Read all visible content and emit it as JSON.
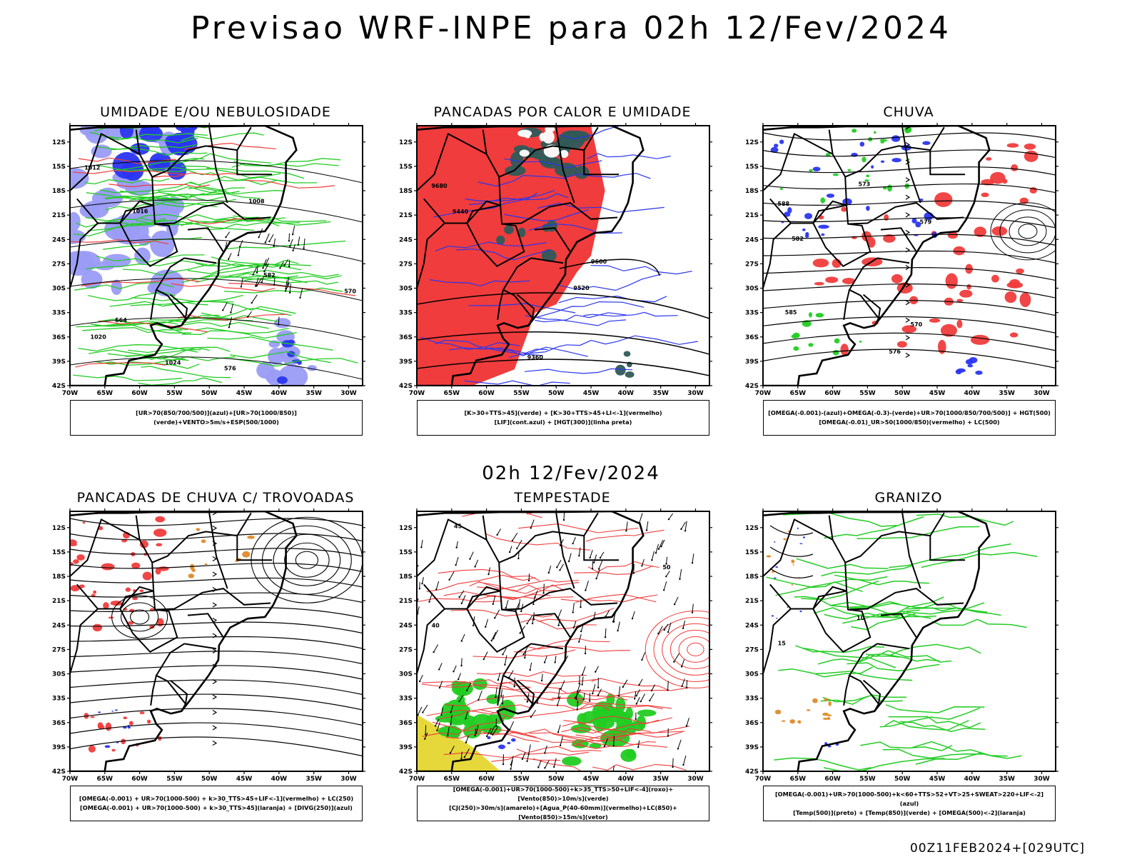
{
  "header": {
    "title": "Previsao WRF-INPE  para 02h 12/Fev/2024"
  },
  "middle_title": "02h 12/Fev/2024",
  "footer": "00Z11FEB2024+[029UTC]",
  "axes": {
    "lat_labels": [
      "12S",
      "15S",
      "18S",
      "21S",
      "24S",
      "27S",
      "30S",
      "33S",
      "36S",
      "39S",
      "42S"
    ],
    "lon_labels": [
      "70W",
      "65W",
      "60W",
      "55W",
      "50W",
      "45W",
      "40W",
      "35W",
      "30W"
    ]
  },
  "colors": {
    "red": "#f03c3c",
    "blue": "#2a35f0",
    "light_blue": "#9a9cf5",
    "green": "#22cc22",
    "dark_green": "#2f5a58",
    "orange": "#e08a28",
    "yellow": "#e6d83a",
    "black": "#000000"
  },
  "panels": [
    {
      "title": "UMIDADE E/OU NEBULOSIDADE",
      "caption": [
        "[UR>70(850/700/500)](azul)+[UR>70(1000/850)](verde)+VENTO>5m/s+ESP(500/1000)"
      ],
      "contour_labels": [
        "1012",
        "1016",
        "1020",
        "1008",
        "1024",
        "576",
        "570",
        "564",
        "582"
      ]
    },
    {
      "title": "PANCADAS POR CALOR E UMIDADE",
      "caption": [
        "[K>30+TTS>45](verde) + [K>30+TTS>45+LI<-1](vermelho)",
        "[LIF](cont.azul) + [HGT(300)](linha preta)"
      ],
      "contour_labels": [
        "9680",
        "9600",
        "9520",
        "9440",
        "9360"
      ]
    },
    {
      "title": "CHUVA",
      "caption": [
        "[OMEGA(-0.001)-(azul)+OMEGA(-0.3)-(verde)+UR>70(1000/850/700/500)] + HGT(500)",
        "[OMEGA(-0.01)_UR>50(1000/850)(vermelho) + LC(500)"
      ],
      "contour_labels": [
        "588",
        "585",
        "582",
        "579",
        "576",
        "573",
        "570"
      ]
    },
    {
      "title": "PANCADAS DE CHUVA C/ TROVOADAS",
      "caption": [
        "[OMEGA(-0.001) + UR>70(1000-500) + k>30_TTS>45+LIF<-1](vermelho) + LC(250)",
        "[OMEGA(-0.001) + UR>70(1000-500) + k>30_TTS>45](laranja) + [DIVG(250)](azul)"
      ],
      "contour_labels": []
    },
    {
      "title": "TEMPESTADE",
      "caption": [
        "[OMEGA(-0.001)+UR>70(1000-500)+k>35_TTS>50+LIF<-4](roxo)+[Vento(850)>10m/s](verde)",
        "[CJ(250)>30m/s](amarelo)+[Agua_P(40-60mm)](vermelho)+LC(850)+[Vento(850)>15m/s](vetor)"
      ],
      "contour_labels": [
        "40",
        "50",
        "45"
      ]
    },
    {
      "title": "GRANIZO",
      "caption": [
        "[OMEGA(-0.001)+UR>70(1000-500)+k<60+TTS>52+VT>25+SWEAT>220+LIF<-2](azul)",
        "[Temp(500)](preto) + [Temp(850)](verde) + [OMEGA(500)<-2](laranja)"
      ],
      "contour_labels": [
        "15",
        "10"
      ]
    }
  ]
}
